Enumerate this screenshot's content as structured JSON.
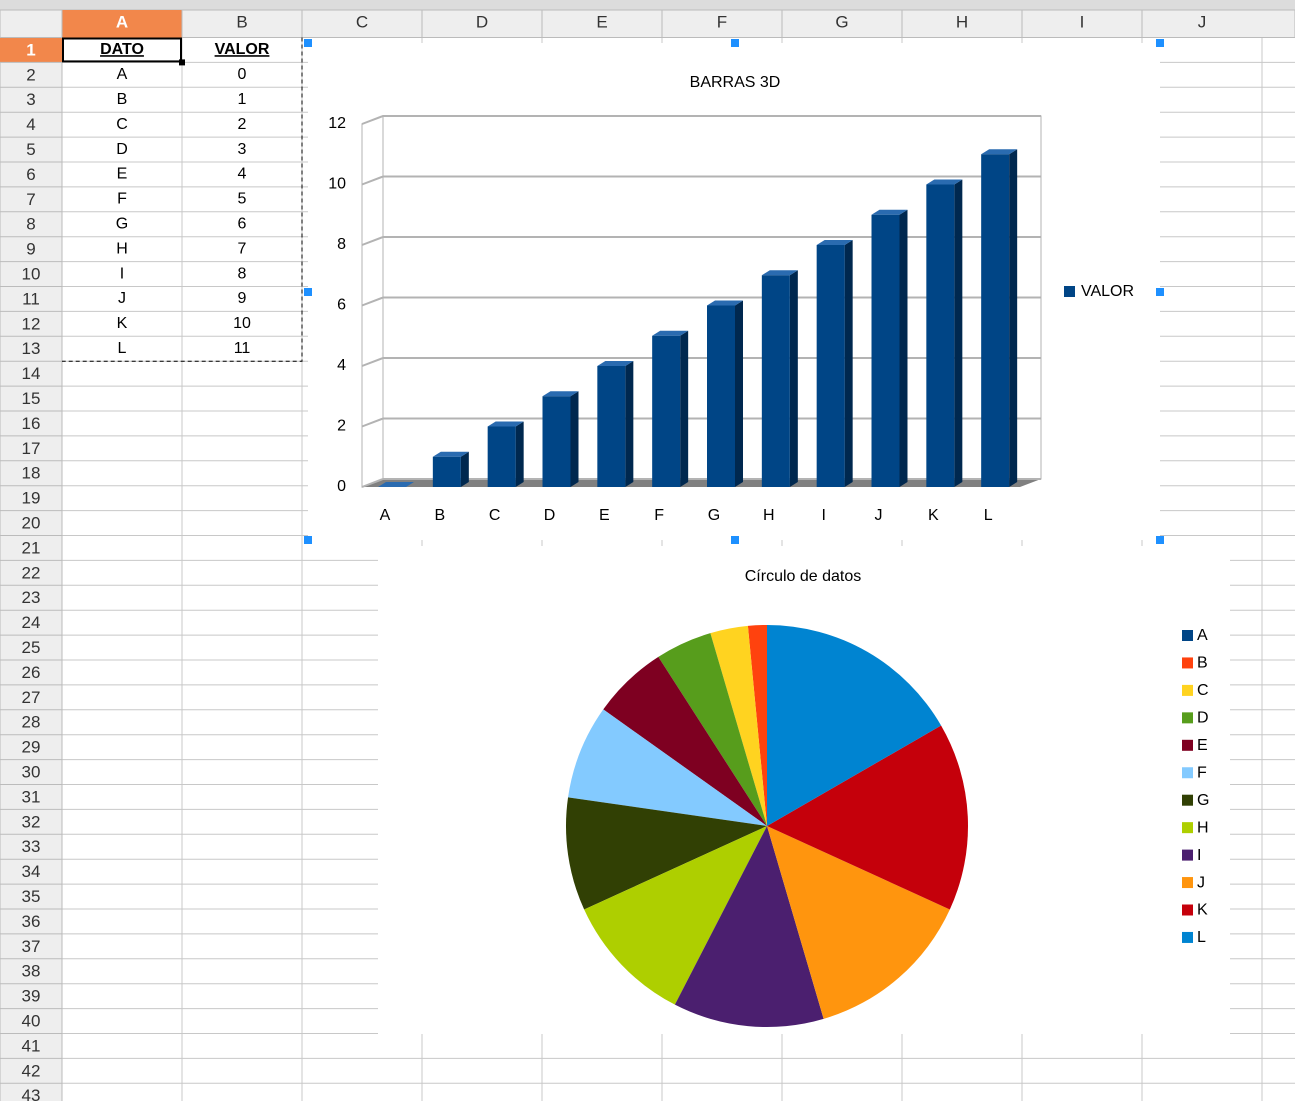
{
  "columns": [
    "A",
    "B",
    "C",
    "D",
    "E",
    "F",
    "G",
    "H",
    "I",
    "J"
  ],
  "row_numbers": [
    1,
    2,
    3,
    4,
    5,
    6,
    7,
    8,
    9,
    10,
    11,
    12,
    13,
    14,
    15,
    16,
    17,
    18,
    19,
    20,
    21,
    22,
    23,
    24,
    25,
    26,
    27,
    28,
    29,
    30,
    31,
    32,
    33,
    34,
    35,
    36,
    37,
    38,
    39,
    40,
    41,
    42,
    43
  ],
  "table": {
    "header": [
      "DATO",
      "VALOR"
    ],
    "rows": [
      [
        "A",
        0
      ],
      [
        "B",
        1
      ],
      [
        "C",
        2
      ],
      [
        "D",
        3
      ],
      [
        "E",
        4
      ],
      [
        "F",
        5
      ],
      [
        "G",
        6
      ],
      [
        "H",
        7
      ],
      [
        "I",
        8
      ],
      [
        "J",
        9
      ],
      [
        "K",
        10
      ],
      [
        "L",
        11
      ]
    ]
  },
  "chart_data": [
    {
      "type": "bar",
      "title": "BARRAS 3D",
      "categories": [
        "A",
        "B",
        "C",
        "D",
        "E",
        "F",
        "G",
        "H",
        "I",
        "J",
        "K",
        "L"
      ],
      "series": [
        {
          "name": "VALOR",
          "color": "#004586",
          "values": [
            0,
            1,
            2,
            3,
            4,
            5,
            6,
            7,
            8,
            9,
            10,
            11
          ]
        }
      ],
      "ylim": [
        0,
        12
      ],
      "yticks": [
        0,
        2,
        4,
        6,
        8,
        10,
        12
      ],
      "grid": true,
      "legend": "right"
    },
    {
      "type": "pie",
      "title": "Círculo de datos",
      "categories": [
        "A",
        "B",
        "C",
        "D",
        "E",
        "F",
        "G",
        "H",
        "I",
        "J",
        "K",
        "L"
      ],
      "values": [
        0,
        1,
        2,
        3,
        4,
        5,
        6,
        7,
        8,
        9,
        10,
        11
      ],
      "colors": [
        "#004586",
        "#ff420e",
        "#ffd320",
        "#579d1c",
        "#7e0021",
        "#83caff",
        "#314004",
        "#aecf00",
        "#4b1f6f",
        "#ff950e",
        "#c5000b",
        "#0084d1"
      ],
      "legend": "right"
    }
  ]
}
